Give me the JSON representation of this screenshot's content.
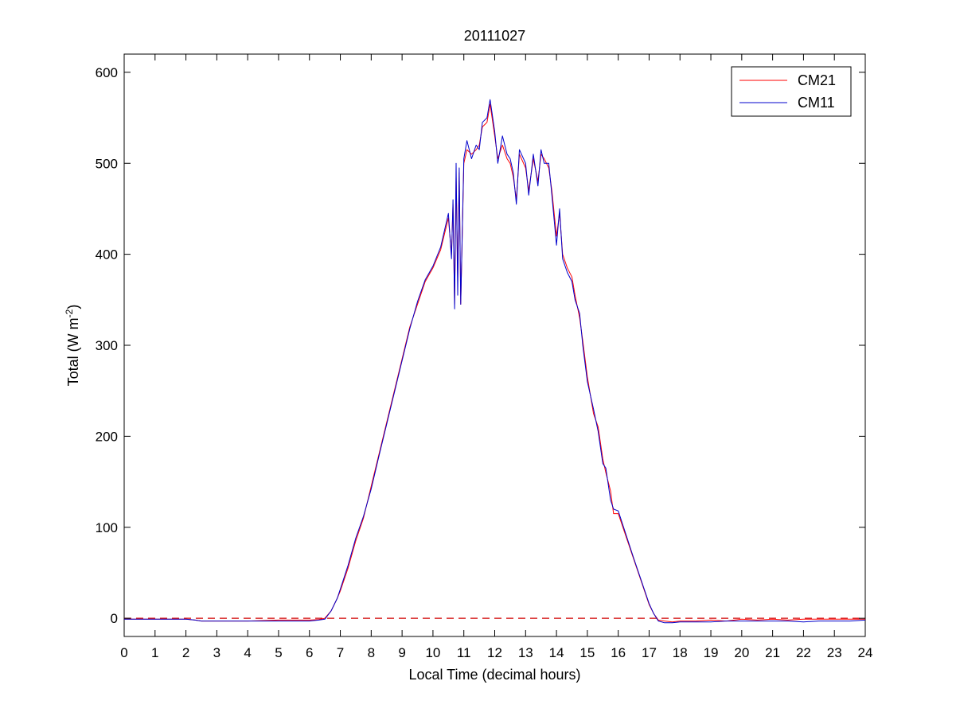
{
  "chart_data": {
    "type": "line",
    "title": "20111027",
    "xlabel": "Local Time (decimal hours)",
    "ylabel": {
      "main": "Total (W m",
      "sup": "-2",
      "close": ")"
    },
    "xlim": [
      0,
      24
    ],
    "ylim": [
      -20,
      620
    ],
    "xticks": [
      0,
      1,
      2,
      3,
      4,
      5,
      6,
      7,
      8,
      9,
      10,
      11,
      12,
      13,
      14,
      15,
      16,
      17,
      18,
      19,
      20,
      21,
      22,
      23,
      24
    ],
    "yticks": [
      0,
      100,
      200,
      300,
      400,
      500,
      600
    ],
    "grid": false,
    "legend": {
      "position": "top-right",
      "entries": [
        "CM21",
        "CM11"
      ]
    },
    "reference_line": {
      "y": 0,
      "style": "dashed",
      "color": "#d00000"
    },
    "series": [
      {
        "name": "CM21",
        "color": "#ff0000",
        "points": [
          [
            0,
            -1
          ],
          [
            1,
            -1
          ],
          [
            2,
            -1
          ],
          [
            2.3,
            -2
          ],
          [
            2.5,
            -3
          ],
          [
            3,
            -3
          ],
          [
            4,
            -3
          ],
          [
            5,
            -2
          ],
          [
            6,
            -2
          ],
          [
            6.3,
            -1.5
          ],
          [
            6.5,
            0
          ],
          [
            6.7,
            8
          ],
          [
            6.9,
            22
          ],
          [
            7,
            30
          ],
          [
            7.25,
            55
          ],
          [
            7.5,
            85
          ],
          [
            7.75,
            110
          ],
          [
            8,
            145
          ],
          [
            8.25,
            180
          ],
          [
            8.5,
            215
          ],
          [
            8.75,
            250
          ],
          [
            9,
            285
          ],
          [
            9.25,
            320
          ],
          [
            9.5,
            345
          ],
          [
            9.75,
            370
          ],
          [
            10,
            385
          ],
          [
            10.25,
            405
          ],
          [
            10.5,
            440
          ],
          [
            10.6,
            400
          ],
          [
            10.65,
            455
          ],
          [
            10.7,
            345
          ],
          [
            10.75,
            485
          ],
          [
            10.8,
            375
          ],
          [
            10.85,
            490
          ],
          [
            10.9,
            345
          ],
          [
            11,
            500
          ],
          [
            11.1,
            515
          ],
          [
            11.25,
            510
          ],
          [
            11.4,
            515
          ],
          [
            11.5,
            520
          ],
          [
            11.6,
            540
          ],
          [
            11.75,
            545
          ],
          [
            11.85,
            565
          ],
          [
            12,
            530
          ],
          [
            12.1,
            505
          ],
          [
            12.25,
            520
          ],
          [
            12.4,
            505
          ],
          [
            12.5,
            500
          ],
          [
            12.6,
            485
          ],
          [
            12.7,
            460
          ],
          [
            12.8,
            510
          ],
          [
            13,
            495
          ],
          [
            13.1,
            470
          ],
          [
            13.25,
            505
          ],
          [
            13.4,
            480
          ],
          [
            13.5,
            510
          ],
          [
            13.6,
            505
          ],
          [
            13.75,
            495
          ],
          [
            13.85,
            470
          ],
          [
            14,
            420
          ],
          [
            14.1,
            445
          ],
          [
            14.2,
            400
          ],
          [
            14.35,
            385
          ],
          [
            14.5,
            375
          ],
          [
            14.6,
            355
          ],
          [
            14.75,
            330
          ],
          [
            14.85,
            305
          ],
          [
            15,
            265
          ],
          [
            15.2,
            225
          ],
          [
            15.35,
            210
          ],
          [
            15.5,
            175
          ],
          [
            15.6,
            160
          ],
          [
            15.75,
            140
          ],
          [
            15.85,
            115
          ],
          [
            16,
            115
          ],
          [
            16.25,
            90
          ],
          [
            16.5,
            65
          ],
          [
            16.75,
            40
          ],
          [
            17,
            15
          ],
          [
            17.15,
            5
          ],
          [
            17.3,
            -2
          ],
          [
            17.5,
            -3
          ],
          [
            17.75,
            -4
          ],
          [
            18,
            -3
          ],
          [
            18.5,
            -3
          ],
          [
            19,
            -2
          ],
          [
            19.5,
            -3
          ],
          [
            20,
            -1
          ],
          [
            20.5,
            -2
          ],
          [
            21,
            -1
          ],
          [
            21.5,
            -2
          ],
          [
            22,
            -1
          ],
          [
            22.5,
            -1
          ],
          [
            23,
            -1
          ],
          [
            23.5,
            -1
          ],
          [
            24,
            -1
          ]
        ]
      },
      {
        "name": "CM11",
        "color": "#0000cc",
        "points": [
          [
            0,
            -1
          ],
          [
            1,
            -1
          ],
          [
            2,
            -1
          ],
          [
            2.3,
            -2
          ],
          [
            2.5,
            -3
          ],
          [
            3,
            -3
          ],
          [
            4,
            -3
          ],
          [
            5,
            -3
          ],
          [
            6,
            -3
          ],
          [
            6.3,
            -2
          ],
          [
            6.5,
            -1
          ],
          [
            6.7,
            8
          ],
          [
            6.9,
            22
          ],
          [
            7,
            32
          ],
          [
            7.25,
            58
          ],
          [
            7.5,
            88
          ],
          [
            7.75,
            112
          ],
          [
            8,
            142
          ],
          [
            8.25,
            178
          ],
          [
            8.5,
            213
          ],
          [
            8.75,
            248
          ],
          [
            9,
            283
          ],
          [
            9.25,
            318
          ],
          [
            9.5,
            348
          ],
          [
            9.75,
            372
          ],
          [
            10,
            387
          ],
          [
            10.25,
            408
          ],
          [
            10.5,
            445
          ],
          [
            10.6,
            395
          ],
          [
            10.65,
            460
          ],
          [
            10.7,
            340
          ],
          [
            10.75,
            500
          ],
          [
            10.8,
            355
          ],
          [
            10.85,
            495
          ],
          [
            10.9,
            345
          ],
          [
            11,
            505
          ],
          [
            11.1,
            525
          ],
          [
            11.25,
            505
          ],
          [
            11.4,
            520
          ],
          [
            11.5,
            515
          ],
          [
            11.6,
            545
          ],
          [
            11.75,
            550
          ],
          [
            11.85,
            570
          ],
          [
            12,
            535
          ],
          [
            12.1,
            500
          ],
          [
            12.25,
            530
          ],
          [
            12.4,
            510
          ],
          [
            12.5,
            505
          ],
          [
            12.6,
            490
          ],
          [
            12.7,
            455
          ],
          [
            12.8,
            515
          ],
          [
            13,
            500
          ],
          [
            13.1,
            465
          ],
          [
            13.25,
            510
          ],
          [
            13.4,
            475
          ],
          [
            13.5,
            515
          ],
          [
            13.6,
            500
          ],
          [
            13.75,
            500
          ],
          [
            13.85,
            465
          ],
          [
            14,
            410
          ],
          [
            14.1,
            450
          ],
          [
            14.2,
            395
          ],
          [
            14.35,
            380
          ],
          [
            14.5,
            370
          ],
          [
            14.6,
            350
          ],
          [
            14.75,
            335
          ],
          [
            14.85,
            300
          ],
          [
            15,
            260
          ],
          [
            15.2,
            230
          ],
          [
            15.35,
            205
          ],
          [
            15.5,
            170
          ],
          [
            15.6,
            165
          ],
          [
            15.75,
            130
          ],
          [
            15.85,
            120
          ],
          [
            16,
            118
          ],
          [
            16.25,
            92
          ],
          [
            16.5,
            66
          ],
          [
            16.75,
            41
          ],
          [
            17,
            16
          ],
          [
            17.15,
            5
          ],
          [
            17.3,
            -3
          ],
          [
            17.5,
            -5
          ],
          [
            17.75,
            -5
          ],
          [
            18,
            -4
          ],
          [
            18.5,
            -4
          ],
          [
            19,
            -4
          ],
          [
            19.5,
            -3
          ],
          [
            20,
            -3
          ],
          [
            20.5,
            -3
          ],
          [
            21,
            -3
          ],
          [
            21.5,
            -3
          ],
          [
            22,
            -4
          ],
          [
            22.5,
            -3
          ],
          [
            23,
            -3
          ],
          [
            23.5,
            -3
          ],
          [
            24,
            -2
          ]
        ]
      }
    ]
  }
}
